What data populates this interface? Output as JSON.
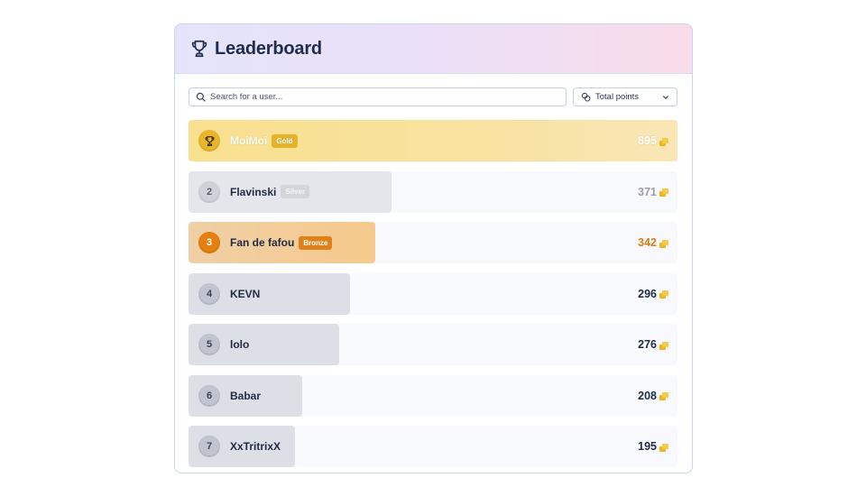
{
  "header": {
    "title": "Leaderboard",
    "icon": "trophy-icon"
  },
  "search": {
    "placeholder": "Search for a user...",
    "value": ""
  },
  "sort": {
    "selected": "Total points",
    "icon": "coins-icon"
  },
  "colors": {
    "gold": "#e5b22a",
    "silver": "#d2d5db",
    "bronze": "#e0801a",
    "text": "#1f2a44"
  },
  "leaderboard": [
    {
      "rank": "",
      "rank_icon": "trophy-icon",
      "name": "MoiMoi",
      "badge": "Gold",
      "points": "895",
      "points_value": 895,
      "tier": "gold"
    },
    {
      "rank": "2",
      "name": "Flavinski",
      "badge": "Silver",
      "points": "371",
      "points_value": 371,
      "tier": "silver"
    },
    {
      "rank": "3",
      "name": "Fan de fafou",
      "badge": "Bronze",
      "points": "342",
      "points_value": 342,
      "tier": "bronze"
    },
    {
      "rank": "4",
      "name": "KEVN",
      "badge": "",
      "points": "296",
      "points_value": 296,
      "tier": ""
    },
    {
      "rank": "5",
      "name": "lolo",
      "badge": "",
      "points": "276",
      "points_value": 276,
      "tier": ""
    },
    {
      "rank": "6",
      "name": "Babar",
      "badge": "",
      "points": "208",
      "points_value": 208,
      "tier": ""
    },
    {
      "rank": "7",
      "name": "XxTritrixX",
      "badge": "",
      "points": "195",
      "points_value": 195,
      "tier": ""
    }
  ]
}
